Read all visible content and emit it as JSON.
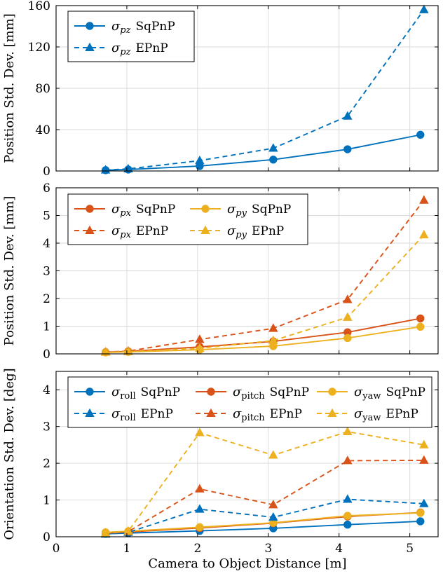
{
  "figure": {
    "shared_xlabel": "Camera to Object Distance [m]",
    "x_ticks": [
      "0",
      "1",
      "2",
      "3",
      "4",
      "5"
    ]
  },
  "chart_data": [
    {
      "type": "line",
      "ylabel": "Position Std. Dev. [mm]",
      "xlim": [
        0,
        5.4
      ],
      "ylim": [
        0,
        160
      ],
      "yticks": [
        0,
        40,
        80,
        120,
        160
      ],
      "y_tick_labels": [
        "0",
        "40",
        "80",
        "120",
        "160"
      ],
      "x_ticks_shown": false,
      "legend_position": "top-left",
      "legend_columns": 1,
      "x": [
        0.7,
        1.02,
        2.03,
        3.07,
        4.12,
        5.15
      ],
      "series": [
        {
          "name": "σpz SqPnP",
          "symbol": "σ",
          "sub": "pz",
          "sub_italic": true,
          "method": "SqPnP",
          "color": "#0072bd",
          "style": "solid",
          "marker": "circle",
          "x": [
            0.7,
            1.02,
            2.03,
            3.07,
            4.12,
            5.15
          ],
          "values": [
            0.8,
            1.4,
            4.8,
            11,
            21,
            35
          ]
        },
        {
          "name": "σpz EPnP",
          "symbol": "σ",
          "sub": "pz",
          "sub_italic": true,
          "method": "EPnP",
          "color": "#0072bd",
          "style": "dashed",
          "marker": "triangle",
          "x": [
            0.7,
            1.02,
            2.03,
            3.07,
            4.12,
            5.2
          ],
          "values": [
            0.9,
            2,
            10,
            22,
            53,
            156
          ]
        }
      ]
    },
    {
      "type": "line",
      "ylabel": "Position Std. Dev. [mm]",
      "xlim": [
        0,
        5.4
      ],
      "ylim": [
        0,
        6
      ],
      "yticks": [
        0,
        1,
        2,
        3,
        4,
        5,
        6
      ],
      "y_tick_labels": [
        "0",
        "1",
        "2",
        "3",
        "4",
        "5",
        "6"
      ],
      "x_ticks_shown": false,
      "legend_position": "top-left",
      "legend_columns": 2,
      "series": [
        {
          "name": "σpx SqPnP",
          "symbol": "σ",
          "sub": "px",
          "sub_italic": true,
          "method": "SqPnP",
          "color": "#d95319",
          "style": "solid",
          "marker": "circle",
          "x": [
            0.7,
            1.02,
            2.03,
            3.07,
            4.12,
            5.15
          ],
          "values": [
            0.06,
            0.09,
            0.25,
            0.45,
            0.78,
            1.28
          ]
        },
        {
          "name": "σpy SqPnP",
          "symbol": "σ",
          "sub": "py",
          "sub_italic": true,
          "method": "SqPnP",
          "color": "#edb120",
          "style": "solid",
          "marker": "circle",
          "x": [
            0.7,
            1.02,
            2.03,
            3.07,
            4.12,
            5.15
          ],
          "values": [
            0.05,
            0.07,
            0.15,
            0.28,
            0.57,
            0.98
          ]
        },
        {
          "name": "σpx EPnP",
          "symbol": "σ",
          "sub": "px",
          "sub_italic": true,
          "method": "EPnP",
          "color": "#d95319",
          "style": "dashed",
          "marker": "triangle",
          "x": [
            0.7,
            1.02,
            2.03,
            3.07,
            4.12,
            5.2
          ],
          "values": [
            0.07,
            0.1,
            0.52,
            0.92,
            1.96,
            5.55
          ]
        },
        {
          "name": "σpy EPnP",
          "symbol": "σ",
          "sub": "py",
          "sub_italic": true,
          "method": "EPnP",
          "color": "#edb120",
          "style": "dashed",
          "marker": "triangle",
          "x": [
            0.7,
            1.02,
            2.03,
            3.07,
            4.12,
            5.2
          ],
          "values": [
            0.06,
            0.08,
            0.2,
            0.48,
            1.32,
            4.3
          ]
        }
      ]
    },
    {
      "type": "line",
      "ylabel": "Orientation Std. Dev. [deg]",
      "xlim": [
        0,
        5.4
      ],
      "ylim": [
        0,
        4.5
      ],
      "yticks": [
        0,
        1,
        2,
        3,
        4
      ],
      "y_tick_labels": [
        "0",
        "1",
        "2",
        "3",
        "4"
      ],
      "x_ticks_shown": true,
      "legend_position": "top-center",
      "legend_columns": 3,
      "series": [
        {
          "name": "σroll SqPnP",
          "symbol": "σ",
          "sub": "roll",
          "sub_italic": false,
          "method": "SqPnP",
          "color": "#0072bd",
          "style": "solid",
          "marker": "circle",
          "x": [
            0.7,
            1.02,
            2.03,
            3.07,
            4.12,
            5.15
          ],
          "values": [
            0.08,
            0.1,
            0.16,
            0.23,
            0.33,
            0.42
          ]
        },
        {
          "name": "σpitch SqPnP",
          "symbol": "σ",
          "sub": "pitch",
          "sub_italic": false,
          "method": "SqPnP",
          "color": "#d95319",
          "style": "solid",
          "marker": "circle",
          "x": [
            0.7,
            1.02,
            2.03,
            3.07,
            4.12,
            5.15
          ],
          "values": [
            0.1,
            0.13,
            0.24,
            0.37,
            0.55,
            0.66
          ]
        },
        {
          "name": "σyaw SqPnP",
          "symbol": "σ",
          "sub": "yaw",
          "sub_italic": false,
          "method": "SqPnP",
          "color": "#edb120",
          "style": "solid",
          "marker": "circle",
          "x": [
            0.7,
            1.02,
            2.03,
            3.07,
            4.12,
            5.15
          ],
          "values": [
            0.12,
            0.15,
            0.26,
            0.38,
            0.57,
            0.65
          ]
        },
        {
          "name": "σroll EPnP",
          "symbol": "σ",
          "sub": "roll",
          "sub_italic": false,
          "method": "EPnP",
          "color": "#0072bd",
          "style": "dashed",
          "marker": "triangle",
          "x": [
            0.7,
            1.02,
            2.03,
            3.07,
            4.12,
            5.2
          ],
          "values": [
            0.07,
            0.12,
            0.75,
            0.53,
            1.02,
            0.9
          ]
        },
        {
          "name": "σpitch EPnP",
          "symbol": "σ",
          "sub": "pitch",
          "sub_italic": false,
          "method": "EPnP",
          "color": "#d95319",
          "style": "dashed",
          "marker": "triangle",
          "x": [
            0.7,
            1.02,
            2.03,
            3.07,
            4.12,
            5.2
          ],
          "values": [
            0.09,
            0.14,
            1.3,
            0.87,
            2.07,
            2.08
          ]
        },
        {
          "name": "σyaw EPnP",
          "symbol": "σ",
          "sub": "yaw",
          "sub_italic": false,
          "method": "EPnP",
          "color": "#edb120",
          "style": "dashed",
          "marker": "triangle",
          "x": [
            0.7,
            1.02,
            2.03,
            3.07,
            4.12,
            5.2
          ],
          "values": [
            0.1,
            0.15,
            2.83,
            2.22,
            2.86,
            2.5
          ]
        }
      ]
    }
  ]
}
